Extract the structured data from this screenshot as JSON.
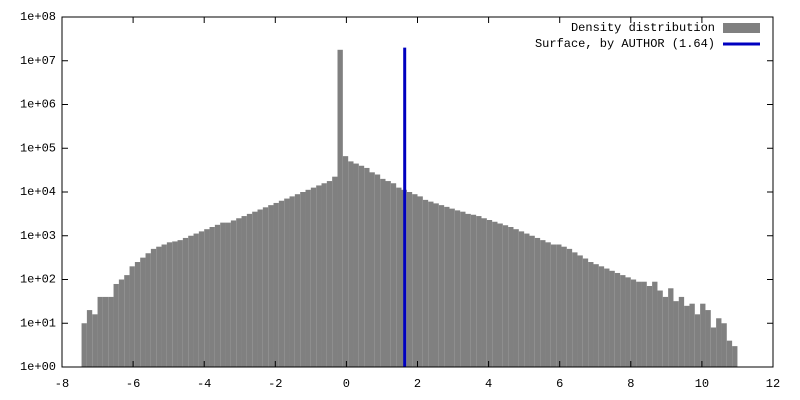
{
  "chart_data": {
    "type": "histogram",
    "name": "Density distribution",
    "color": "#808080",
    "bins": [
      -7.45,
      -7.3,
      -7.15,
      -7,
      -6.85,
      -6.7,
      -6.55,
      -6.4,
      -6.25,
      -6.1,
      -5.95,
      -5.8,
      -5.65,
      -5.5,
      -5.35,
      -5.2,
      -5.05,
      -4.9,
      -4.75,
      -4.6,
      -4.45,
      -4.3,
      -4.15,
      -4,
      -3.85,
      -3.7,
      -3.55,
      -3.4,
      -3.25,
      -3.1,
      -2.95,
      -2.8,
      -2.65,
      -2.5,
      -2.35,
      -2.2,
      -2.05,
      -1.9,
      -1.75,
      -1.6,
      -1.45,
      -1.3,
      -1.15,
      -1,
      -0.85,
      -0.7,
      -0.55,
      -0.4,
      -0.25,
      -0.1,
      0.05,
      0.2,
      0.35,
      0.5,
      0.65,
      0.8,
      0.95,
      1.1,
      1.25,
      1.4,
      1.55,
      1.7,
      1.85,
      2,
      2.15,
      2.3,
      2.45,
      2.6,
      2.75,
      2.9,
      3.05,
      3.2,
      3.35,
      3.5,
      3.65,
      3.8,
      3.95,
      4.1,
      4.25,
      4.4,
      4.55,
      4.7,
      4.85,
      5,
      5.15,
      5.3,
      5.45,
      5.6,
      5.75,
      5.9,
      6.05,
      6.2,
      6.35,
      6.5,
      6.65,
      6.8,
      6.95,
      7.1,
      7.25,
      7.4,
      7.55,
      7.7,
      7.85,
      8,
      8.15,
      8.3,
      8.45,
      8.6,
      8.75,
      8.9,
      9.05,
      9.2,
      9.35,
      9.5,
      9.65,
      9.8,
      9.95,
      10.1,
      10.25,
      10.4,
      10.55,
      10.7,
      10.85,
      11
    ],
    "values": [
      10,
      20,
      16,
      40,
      40,
      40,
      79,
      100,
      126,
      200,
      251,
      316,
      398,
      501,
      562,
      631,
      708,
      741,
      794,
      891,
      1000,
      1122,
      1259,
      1413,
      1585,
      1778,
      1995,
      1995,
      2239,
      2512,
      2818,
      3162,
      3548,
      3981,
      4467,
      5012,
      5623,
      6310,
      7079,
      7943,
      8913,
      10000,
      11220,
      12589,
      14125,
      15849,
      17783,
      22387,
      17800000,
      66000,
      50119,
      44668,
      39811,
      35481,
      28184,
      25119,
      19953,
      17783,
      15849,
      12589,
      11220,
      10000,
      8913,
      7943,
      6607,
      6026,
      5495,
      5012,
      4571,
      4169,
      3802,
      3548,
      3162,
      3020,
      2818,
      2512,
      2291,
      2089,
      1905,
      1738,
      1585,
      1413,
      1259,
      1122,
      1000,
      891,
      794,
      708,
      631,
      631,
      562,
      501,
      417,
      355,
      302,
      251,
      224,
      200,
      178,
      158,
      141,
      126,
      112,
      100,
      89,
      89,
      71,
      89,
      56,
      40,
      63,
      32,
      40,
      25,
      28,
      16,
      28,
      20,
      8,
      13,
      10,
      4,
      3
    ],
    "vline": {
      "name": "Surface, by AUTHOR (1.64)",
      "color": "#0000c0",
      "x": 1.64,
      "y": [
        1,
        20000000
      ]
    },
    "xlim": [
      -8,
      12
    ],
    "xticks": [
      -8,
      -6,
      -4,
      -2,
      0,
      2,
      4,
      6,
      8,
      10,
      12
    ],
    "ylim": [
      1,
      100000000
    ],
    "log_y": true,
    "yticks": [
      {
        "value": 1,
        "label": "1e+00"
      },
      {
        "value": 10,
        "label": "1e+01"
      },
      {
        "value": 100,
        "label": "1e+02"
      },
      {
        "value": 1000,
        "label": "1e+03"
      },
      {
        "value": 10000,
        "label": "1e+04"
      },
      {
        "value": 100000,
        "label": "1e+05"
      },
      {
        "value": 1000000,
        "label": "1e+06"
      },
      {
        "value": 10000000,
        "label": "1e+07"
      },
      {
        "value": 100000000,
        "label": "1e+08"
      }
    ],
    "grid": false,
    "legend": "top-right"
  }
}
